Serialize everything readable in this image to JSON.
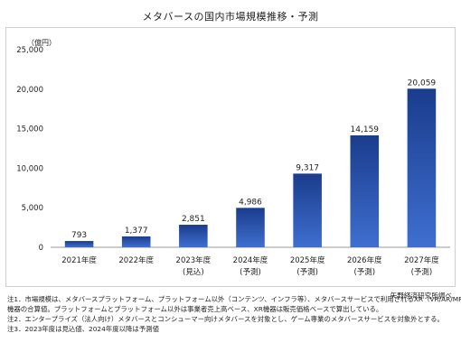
{
  "chart_data": {
    "type": "bar",
    "title": "メタバースの国内市場規模推移・予測",
    "ylabel": "（億円）",
    "ylim": [
      0,
      25000
    ],
    "yticks": [
      0,
      5000,
      10000,
      15000,
      20000,
      25000
    ],
    "ytick_labels": [
      "0",
      "5,000",
      "10,000",
      "15,000",
      "20,000",
      "25,000"
    ],
    "grid": false,
    "categories": [
      [
        "2021年度"
      ],
      [
        "2022年度"
      ],
      [
        "2023年度",
        "(見込)"
      ],
      [
        "2024年度",
        "(予測)"
      ],
      [
        "2025年度",
        "(予測)"
      ],
      [
        "2026年度",
        "(予測)"
      ],
      [
        "2027年度",
        "(予測)"
      ]
    ],
    "values": [
      793,
      1377,
      2851,
      4986,
      9317,
      14159,
      20059
    ],
    "data_labels": [
      "793",
      "1,377",
      "2,851",
      "4,986",
      "9,317",
      "14,159",
      "20,059"
    ],
    "bar_color_top": "#1a3c8c",
    "bar_color_bottom": "#3f6fd0"
  },
  "source": "矢野経済研究所調べ",
  "notes": [
    "注1．市場規模は、メタバースプラットフォーム、プラットフォーム以外（コンテンツ、インフラ等）、メタバースサービスで利用されるXR（VR/AR/MR）",
    "機器の合算値。プラットフォームとプラットフォーム以外は事業者売上高ベース、XR機器は販売価格ベースで算出している。",
    "注2．エンタープライズ（法人向け）メタバースとコンシューマー向けメタバースを対象とし、ゲーム専業のメタバースサービスを対象外とする。",
    "注3．2023年度は見込値、2024年度以降は予測値"
  ]
}
